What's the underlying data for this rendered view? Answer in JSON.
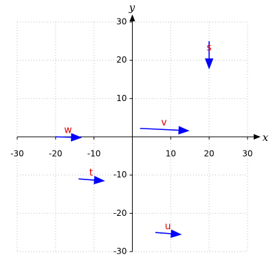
{
  "chart_data": {
    "type": "quiver",
    "xlabel": "x",
    "ylabel": "y",
    "xlim": [
      -30,
      30
    ],
    "ylim": [
      -30,
      30
    ],
    "xticks": [
      -30,
      -20,
      -10,
      10,
      20,
      30
    ],
    "yticks": [
      -30,
      -20,
      -10,
      10,
      20,
      30
    ],
    "grid": true,
    "color": "#0000ff",
    "label_color": "#e00000",
    "vectors": [
      {
        "name": "s",
        "x": 20,
        "y": 25,
        "dx": 0,
        "dy": -7
      },
      {
        "name": "v",
        "x": 2,
        "y": 2.2,
        "dx": 12.5,
        "dy": -0.6
      },
      {
        "name": "w",
        "x": -20,
        "y": 0,
        "dx": 6.5,
        "dy": -0.2
      },
      {
        "name": "t",
        "x": -14,
        "y": -11,
        "dx": 6.5,
        "dy": -0.5
      },
      {
        "name": "u",
        "x": 6,
        "y": -25,
        "dx": 6.5,
        "dy": -0.5
      }
    ]
  }
}
